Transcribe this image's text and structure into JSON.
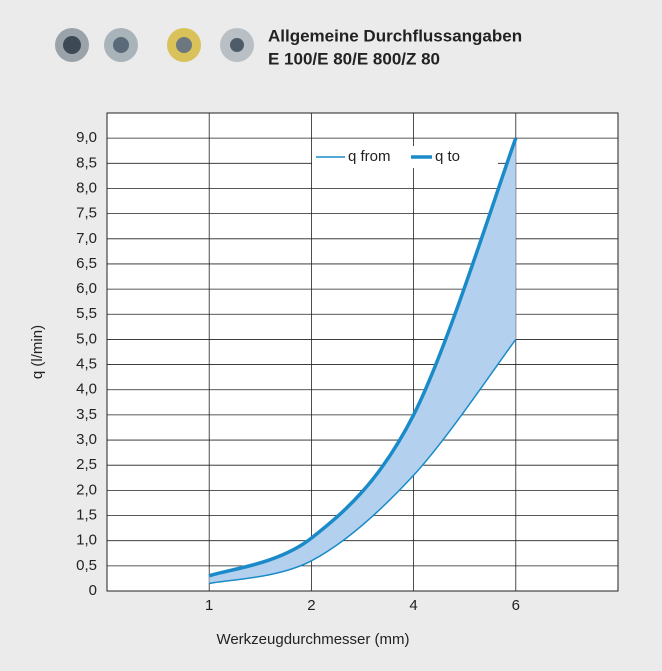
{
  "chart_data": {
    "type": "line",
    "title": "Allgemeine Durchflussangaben",
    "subtitle": "E 100/E 80/E 800/Z 80",
    "x_label": "Werkzeugdurchmesser (mm)",
    "y_label": "q (l/min)",
    "categories": [
      null,
      "1",
      "2",
      "4",
      "6",
      null
    ],
    "series": [
      {
        "name": "q from",
        "color": "#1a8bc8",
        "values": [
          null,
          0.15,
          0.6,
          2.3,
          5.0,
          null
        ]
      },
      {
        "name": "q to",
        "color": "#1a8bc8",
        "values": [
          null,
          0.3,
          1.05,
          3.5,
          9.0,
          null
        ]
      }
    ],
    "fill_color": "#b3d1ee",
    "ylim": [
      0,
      9.5
    ],
    "yticks": [
      0,
      {
        "value": 0.5,
        "label": "0,5"
      },
      {
        "value": 1,
        "label": "1,0"
      },
      {
        "value": 1.5,
        "label": "1,5"
      },
      {
        "value": 2,
        "label": "2,0"
      },
      {
        "value": 2.5,
        "label": "2,5"
      },
      {
        "value": 3,
        "label": "3,0"
      },
      {
        "value": 3.5,
        "label": "3,5"
      },
      {
        "value": 4,
        "label": "4,0"
      },
      {
        "value": 4.5,
        "label": "4,5"
      },
      {
        "value": 5,
        "label": "5,0"
      },
      {
        "value": 5.5,
        "label": "5,5"
      },
      {
        "value": 6,
        "label": "6,0"
      },
      {
        "value": 6.5,
        "label": "6,5"
      },
      {
        "value": 7,
        "label": "7,0"
      },
      {
        "value": 7.5,
        "label": "7,5"
      },
      {
        "value": 8,
        "label": "8,0"
      },
      {
        "value": 8.5,
        "label": "8,5"
      },
      {
        "value": 9,
        "label": "9,0"
      }
    ],
    "grid": true
  }
}
